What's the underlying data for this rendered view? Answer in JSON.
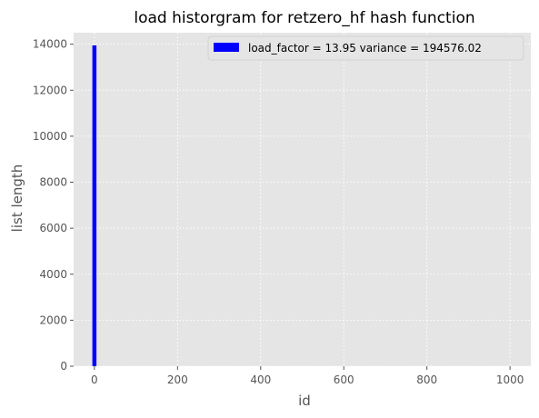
{
  "chart_data": {
    "type": "bar",
    "title": "load historgram for retzero_hf hash function",
    "xlabel": "id",
    "ylabel": "list length",
    "xlim": [
      -50,
      1050
    ],
    "ylim": [
      0,
      14500
    ],
    "xticks": [
      0,
      200,
      400,
      600,
      800,
      1000
    ],
    "yticks": [
      0,
      2000,
      4000,
      6000,
      8000,
      10000,
      12000,
      14000
    ],
    "grid": true,
    "legend_position": "top-right",
    "series": [
      {
        "name": "load_factor = 13.95 variance = 194576.02",
        "color": "#0000ff",
        "x": [
          0
        ],
        "values": [
          13950
        ]
      }
    ],
    "background": "#e5e5e5",
    "grid_color": "#ffffff"
  }
}
